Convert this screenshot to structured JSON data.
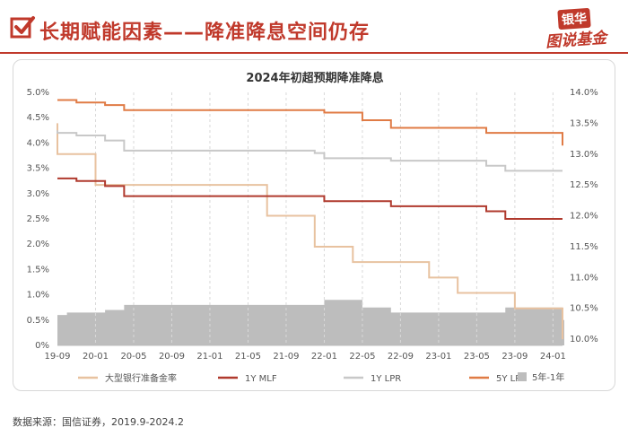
{
  "page": {
    "title": "长期赋能因素——降准降息空间仍存",
    "logo_top": "银华",
    "logo_bottom": "图说基金",
    "source": "数据来源：国信证券，2019.9-2024.2",
    "accent_color": "#c0392b",
    "icons": [
      "check-icon"
    ]
  },
  "chart_data": {
    "type": "line",
    "title": "2024年初超预期降准降息",
    "x_ticks": [
      "19-09",
      "20-01",
      "20-05",
      "20-09",
      "21-01",
      "21-05",
      "21-09",
      "22-01",
      "22-05",
      "22-09",
      "23-01",
      "23-05",
      "23-09",
      "24-01"
    ],
    "x_range": [
      "2019-09",
      "2024-02"
    ],
    "left_axis": {
      "ticks": [
        "0%",
        "0.5%",
        "1.0%",
        "1.5%",
        "2.0%",
        "2.5%",
        "3.0%",
        "3.5%",
        "4.0%",
        "4.5%",
        "5.0%"
      ],
      "range": [
        0,
        5.0
      ]
    },
    "right_axis": {
      "ticks": [
        "10.0%",
        "10.5%",
        "11.0%",
        "11.5%",
        "12.0%",
        "12.5%",
        "13.0%",
        "13.5%",
        "14.0%"
      ],
      "range": [
        9.9,
        14.0
      ]
    },
    "grid": "vertical-dashed",
    "legend_position": "bottom",
    "series": [
      {
        "name": "大型银行准备金率",
        "axis": "right",
        "color": "#e8c2a0",
        "style": "step",
        "points": [
          [
            "2019-09",
            13.5
          ],
          [
            "2019-09",
            13.0
          ],
          [
            "2020-01",
            12.5
          ],
          [
            "2021-07",
            12.0
          ],
          [
            "2021-12",
            11.5
          ],
          [
            "2022-04",
            11.25
          ],
          [
            "2022-12",
            11.0
          ],
          [
            "2023-03",
            10.75
          ],
          [
            "2023-09",
            10.5
          ],
          [
            "2024-02",
            10.0
          ]
        ]
      },
      {
        "name": "1Y MLF",
        "axis": "left",
        "color": "#b03a2e",
        "style": "step",
        "points": [
          [
            "2019-09",
            3.3
          ],
          [
            "2019-11",
            3.25
          ],
          [
            "2020-02",
            3.15
          ],
          [
            "2020-04",
            2.95
          ],
          [
            "2022-01",
            2.85
          ],
          [
            "2022-08",
            2.75
          ],
          [
            "2023-06",
            2.65
          ],
          [
            "2023-08",
            2.5
          ],
          [
            "2024-02",
            2.5
          ]
        ]
      },
      {
        "name": "1Y LPR",
        "axis": "left",
        "color": "#c8c8c8",
        "style": "step",
        "points": [
          [
            "2019-09",
            4.25
          ],
          [
            "2019-09",
            4.2
          ],
          [
            "2019-11",
            4.15
          ],
          [
            "2020-02",
            4.05
          ],
          [
            "2020-04",
            3.85
          ],
          [
            "2021-12",
            3.8
          ],
          [
            "2022-01",
            3.7
          ],
          [
            "2022-08",
            3.65
          ],
          [
            "2023-06",
            3.55
          ],
          [
            "2023-08",
            3.45
          ],
          [
            "2024-02",
            3.45
          ]
        ]
      },
      {
        "name": "5Y LPR",
        "axis": "left",
        "color": "#e07b45",
        "style": "step",
        "points": [
          [
            "2019-09",
            4.85
          ],
          [
            "2019-11",
            4.8
          ],
          [
            "2020-02",
            4.75
          ],
          [
            "2020-04",
            4.65
          ],
          [
            "2022-01",
            4.6
          ],
          [
            "2022-05",
            4.45
          ],
          [
            "2022-08",
            4.3
          ],
          [
            "2023-06",
            4.2
          ],
          [
            "2024-02",
            4.2
          ],
          [
            "2024-02",
            3.95
          ]
        ]
      },
      {
        "name": "5年-1年",
        "axis": "left",
        "color": "#bdbdbd",
        "style": "area-step",
        "points": [
          [
            "2019-09",
            0.6
          ],
          [
            "2019-10",
            0.65
          ],
          [
            "2020-02",
            0.7
          ],
          [
            "2020-04",
            0.8
          ],
          [
            "2022-01",
            0.9
          ],
          [
            "2022-05",
            0.75
          ],
          [
            "2022-08",
            0.65
          ],
          [
            "2023-08",
            0.75
          ],
          [
            "2024-02",
            0.5
          ]
        ]
      }
    ]
  }
}
